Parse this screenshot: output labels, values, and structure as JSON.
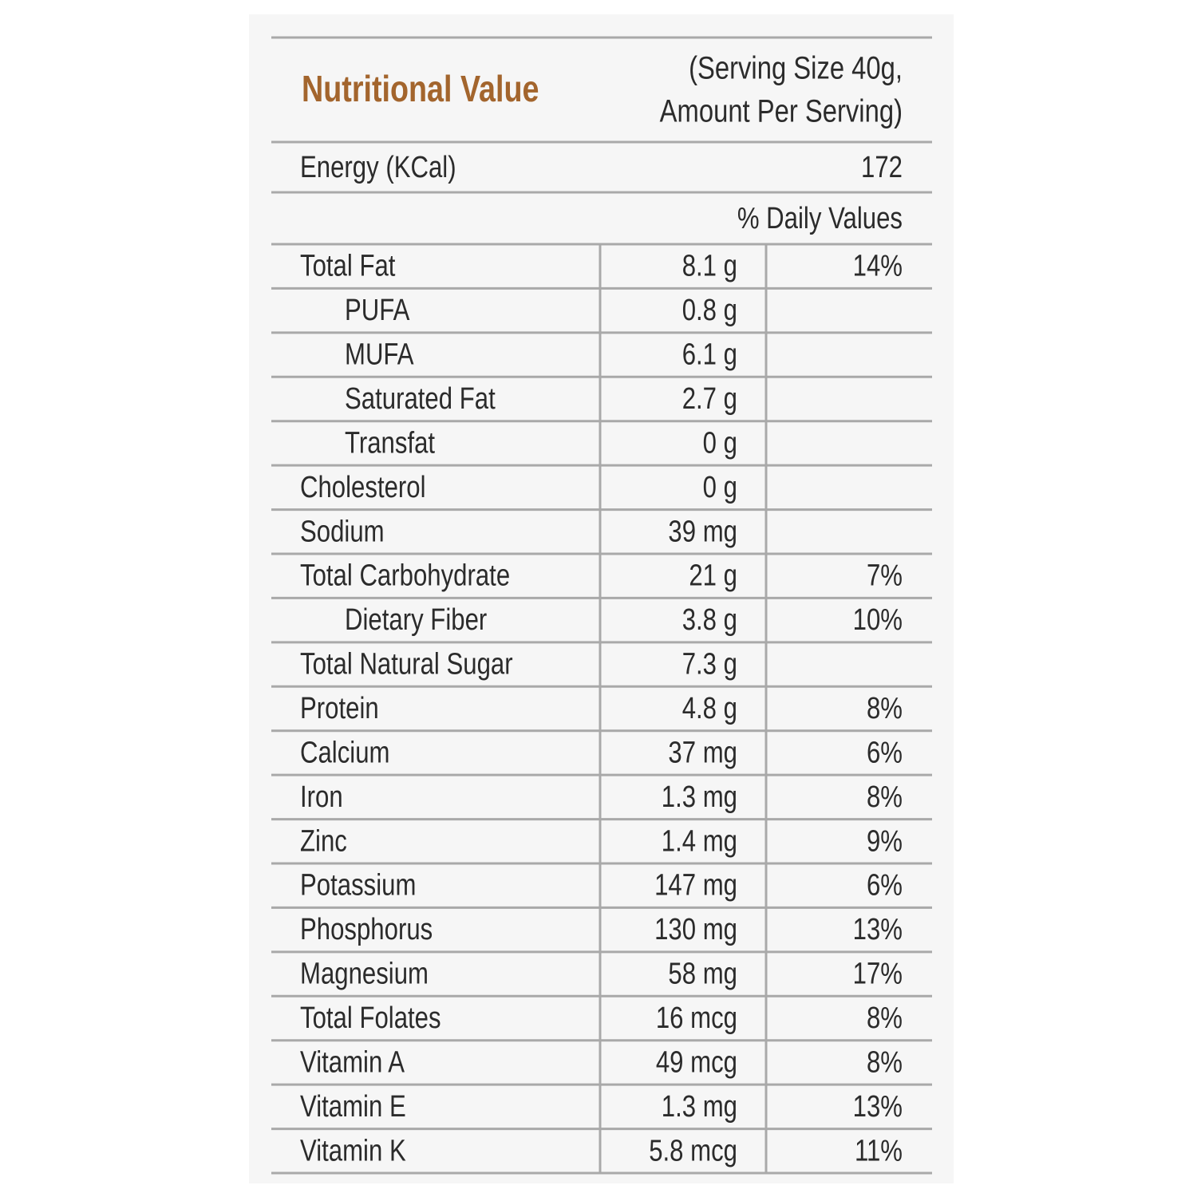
{
  "header": {
    "title": "Nutritional Value",
    "serving": [
      "(Serving Size 40g,",
      "Amount Per Serving)"
    ]
  },
  "energy": {
    "label": "Energy (KCal)",
    "value": "172"
  },
  "daily_values_header": "% Daily Values",
  "rows": [
    {
      "name": "Total Fat",
      "amount": "8.1 g",
      "daily": "14%"
    },
    {
      "name": "PUFA",
      "amount": "0.8 g",
      "sub": true
    },
    {
      "name": "MUFA",
      "amount": "6.1 g",
      "sub": true
    },
    {
      "name": "Saturated Fat",
      "amount": "2.7 g",
      "sub": true
    },
    {
      "name": "Transfat",
      "amount": "0 g",
      "sub": true
    },
    {
      "name": "Cholesterol",
      "amount": "0 g"
    },
    {
      "name": "Sodium",
      "amount": "39 mg"
    },
    {
      "name": "Total Carbohydrate",
      "amount": "21 g",
      "daily": "7%"
    },
    {
      "name": "Dietary Fiber",
      "amount": "3.8 g",
      "daily": "10%",
      "sub": true
    },
    {
      "name": "Total Natural Sugar",
      "amount": "7.3 g"
    },
    {
      "name": "Protein",
      "amount": "4.8 g",
      "daily": "8%"
    },
    {
      "name": "Calcium",
      "amount": "37 mg",
      "daily": "6%"
    },
    {
      "name": "Iron",
      "amount": "1.3 mg",
      "daily": "8%"
    },
    {
      "name": "Zinc",
      "amount": "1.4 mg",
      "daily": "9%"
    },
    {
      "name": "Potassium",
      "amount": "147 mg",
      "daily": "6%"
    },
    {
      "name": "Phosphorus",
      "amount": "130 mg",
      "daily": "13%"
    },
    {
      "name": "Magnesium",
      "amount": "58 mg",
      "daily": "17%"
    },
    {
      "name": "Total Folates",
      "amount": "16 mcg",
      "daily": "8%"
    },
    {
      "name": "Vitamin A",
      "amount": "49 mcg",
      "daily": "8%"
    },
    {
      "name": "Vitamin E",
      "amount": "1.3 mg",
      "daily": "13%"
    },
    {
      "name": "Vitamin K",
      "amount": "5.8 mcg",
      "daily": "11%"
    }
  ]
}
